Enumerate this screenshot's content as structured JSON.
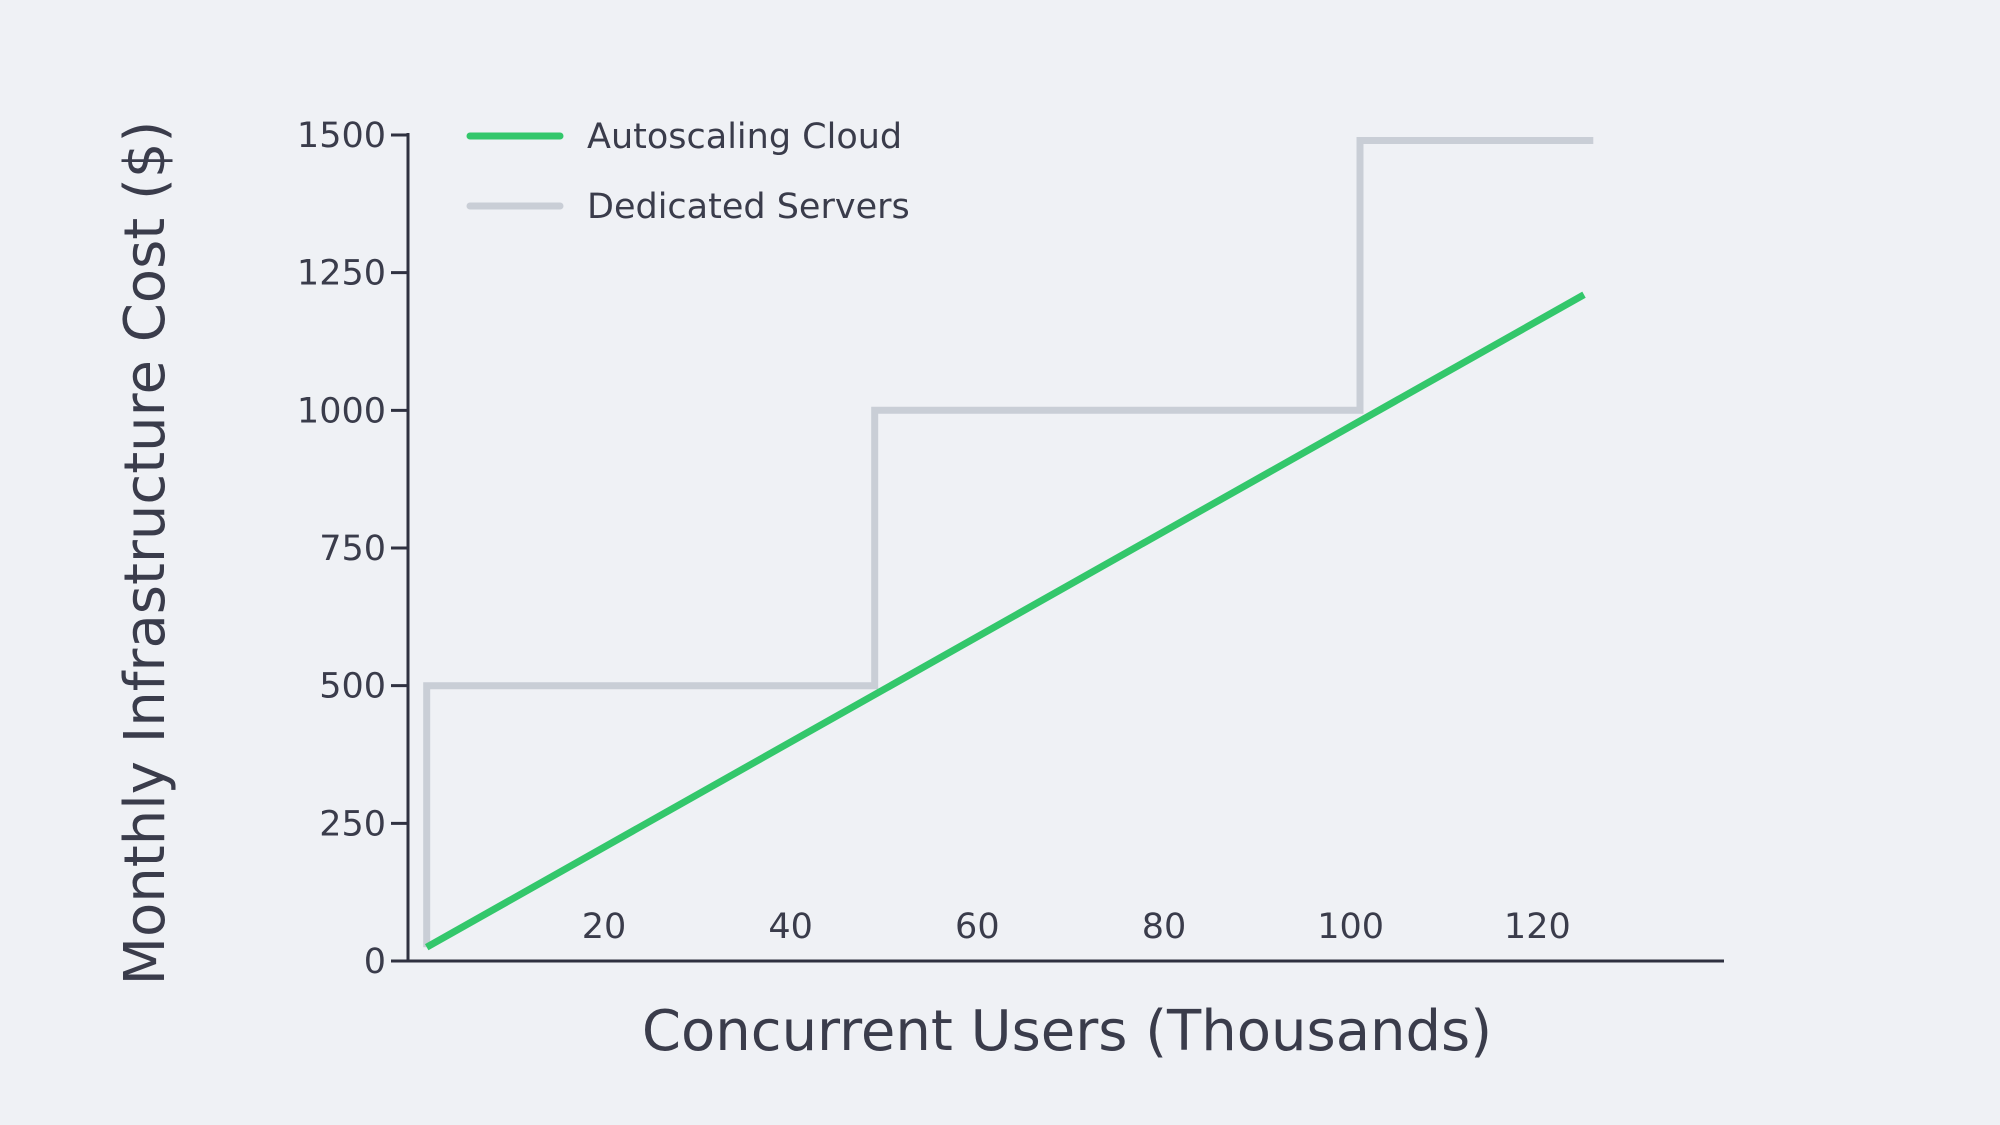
{
  "chart_data": {
    "type": "line",
    "title": "",
    "xlabel": "Concurrent Users (Thousands)",
    "ylabel": "Monthly Infrastructure Cost ($)",
    "xlim": [
      -1,
      140
    ],
    "ylim": [
      0,
      1500
    ],
    "x_ticks": [
      20,
      40,
      60,
      80,
      100,
      120
    ],
    "y_ticks": [
      0,
      250,
      500,
      750,
      1000,
      1250,
      1500
    ],
    "grid": false,
    "legend": "top-left",
    "series": [
      {
        "name": "Autoscaling Cloud",
        "color": "#33c76b",
        "width": 7,
        "points": [
          [
            1,
            25
          ],
          [
            125,
            1210
          ]
        ]
      },
      {
        "name": "Dedicated Servers",
        "color": "#c9ced6",
        "width": 7,
        "points": [
          [
            1,
            25
          ],
          [
            1,
            500
          ],
          [
            49,
            500
          ],
          [
            49,
            1000
          ],
          [
            101,
            1000
          ],
          [
            101,
            1490
          ],
          [
            126,
            1490
          ]
        ]
      }
    ]
  }
}
